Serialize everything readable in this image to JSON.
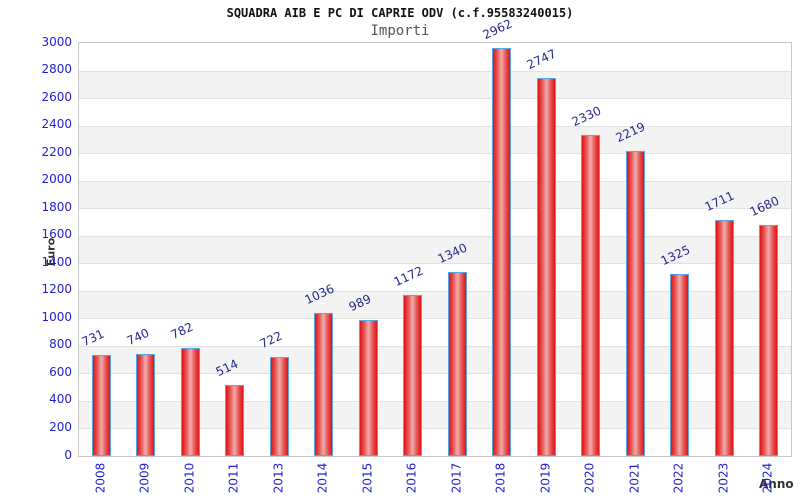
{
  "chart_data": {
    "type": "bar",
    "title": "SQUADRA AIB E PC DI CAPRIE ODV (c.f.95583240015)",
    "subtitle": "Importi",
    "xlabel": "Anno",
    "ylabel": "Euro",
    "categories": [
      "2008",
      "2009",
      "2010",
      "2011",
      "2013",
      "2014",
      "2015",
      "2016",
      "2017",
      "2018",
      "2019",
      "2020",
      "2021",
      "2022",
      "2023",
      "2024"
    ],
    "values": [
      731,
      740,
      782,
      514,
      722,
      1036,
      989,
      1172,
      1340,
      2962,
      2747,
      2330,
      2219,
      1325,
      1711,
      1680
    ],
    "ylim": [
      0,
      3000
    ],
    "ytick_step": 200,
    "grid": "horizontal",
    "legend": "none",
    "colors": {
      "bar_edge": "#e01212",
      "bar_mid": "#e85555",
      "bar_center": "#f0a6a6",
      "bar_border": "#58a6e8",
      "value_label": "#28288c",
      "axis_tick_label": "#2222cc",
      "band": "#f3f3f3",
      "gridline": "#e2e2e2",
      "plot_border": "#c8c8c8",
      "title": "#111111",
      "subtitle": "#555555",
      "axis_title": "#333333"
    }
  }
}
